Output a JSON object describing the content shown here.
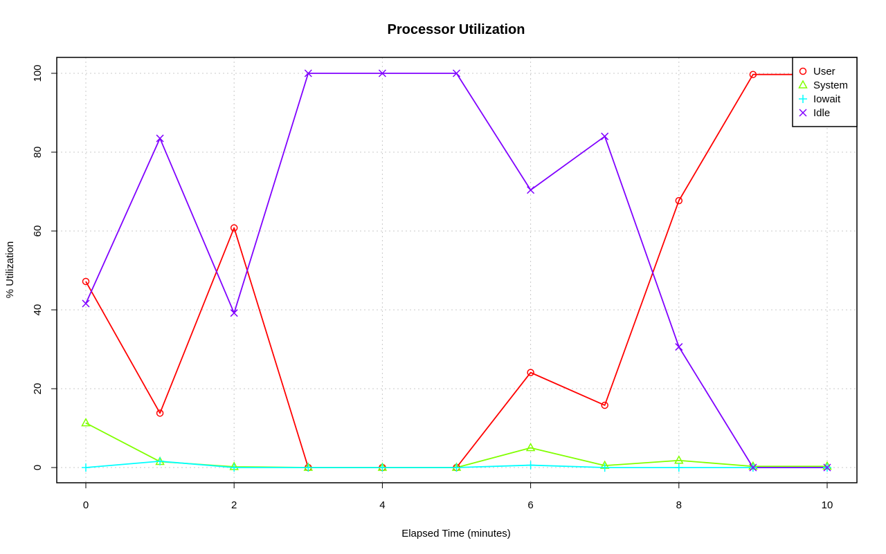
{
  "chart_data": {
    "type": "line",
    "title": "Processor Utilization",
    "xlabel": "Elapsed Time (minutes)",
    "ylabel": "% Utilization",
    "xlim": [
      0,
      10
    ],
    "ylim": [
      0,
      100
    ],
    "x_ticks": [
      0,
      2,
      4,
      6,
      8,
      10
    ],
    "y_ticks": [
      0,
      20,
      40,
      60,
      80,
      100
    ],
    "grid": true,
    "legend_position": "top-right",
    "x": [
      0,
      1,
      2,
      3,
      4,
      5,
      6,
      7,
      8,
      9,
      10
    ],
    "series": [
      {
        "name": "User",
        "color": "#ff0000",
        "marker": "circle",
        "values": [
          47.2,
          13.8,
          60.8,
          0,
          0,
          0,
          24.1,
          15.8,
          67.7,
          99.7,
          99.7
        ]
      },
      {
        "name": "System",
        "color": "#80ff00",
        "marker": "triangle",
        "values": [
          11.3,
          1.5,
          0.2,
          0,
          0,
          0,
          5.0,
          0.5,
          1.8,
          0.3,
          0.3
        ]
      },
      {
        "name": "Iowait",
        "color": "#00ffff",
        "marker": "plus",
        "values": [
          0,
          1.6,
          0,
          0,
          0,
          0,
          0.6,
          0,
          0,
          0,
          0
        ]
      },
      {
        "name": "Idle",
        "color": "#8000ff",
        "marker": "cross",
        "values": [
          41.6,
          83.5,
          39.2,
          100,
          100,
          100,
          70.4,
          84.0,
          30.6,
          0,
          0
        ]
      }
    ]
  }
}
